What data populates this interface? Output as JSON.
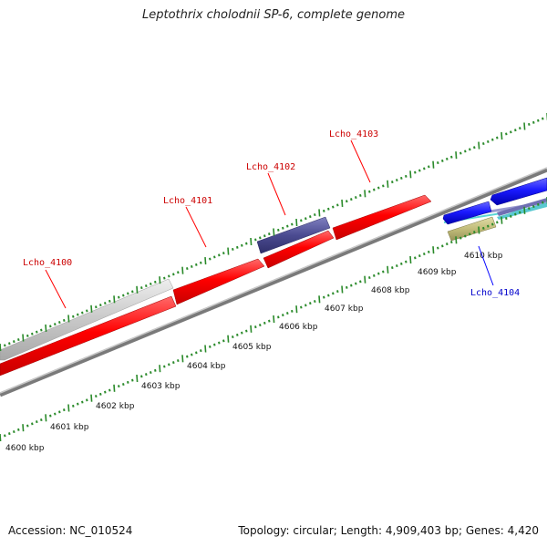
{
  "title": "Leptothrix cholodnii SP-6, complete genome",
  "accession": "Accession: NC_010524",
  "summary": "Topology: circular; Length: 4,909,403 bp; Genes: 4,420",
  "colors": {
    "forward_gene": "#ff0000",
    "reverse_gene": "#1a1aff",
    "rna_gene": "#4b4b91",
    "pseudo_gene": "#c8c8c8",
    "other_feature": "#c2bd7a",
    "backbone": "#7a7a7a",
    "tick": "#2a8a2a",
    "forward_label": "#cc0000",
    "reverse_label": "#0000cc"
  },
  "gene_labels": [
    {
      "name": "Lcho_4100",
      "strand": "forward"
    },
    {
      "name": "Lcho_4101",
      "strand": "forward"
    },
    {
      "name": "Lcho_4102",
      "strand": "forward"
    },
    {
      "name": "Lcho_4103",
      "strand": "forward"
    },
    {
      "name": "Lcho_4104",
      "strand": "reverse"
    }
  ],
  "scale_labels": [
    "4600 kbp",
    "4601 kbp",
    "4602 kbp",
    "4603 kbp",
    "4604 kbp",
    "4605 kbp",
    "4606 kbp",
    "4607 kbp",
    "4608 kbp",
    "4609 kbp",
    "4610 kbp"
  ]
}
